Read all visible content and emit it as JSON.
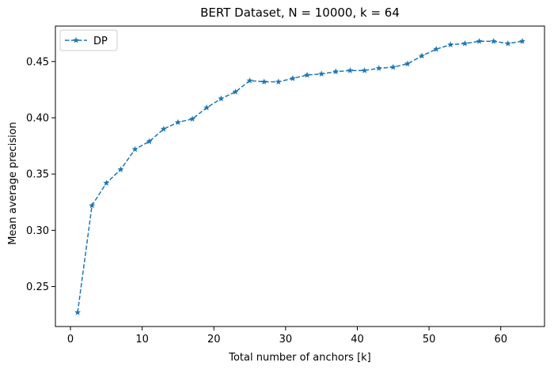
{
  "chart_data": {
    "type": "line",
    "title": "BERT Dataset, N = 10000, k = 64",
    "xlabel": "Total number of anchors [k]",
    "ylabel": "Mean average precision",
    "xlim": [
      -2.1,
      66.1
    ],
    "ylim": [
      0.2145,
      0.4815
    ],
    "xticks": [
      0,
      10,
      20,
      30,
      40,
      50,
      60
    ],
    "yticks": [
      0.25,
      0.3,
      0.35,
      0.4,
      0.45
    ],
    "ytick_labels": [
      "0.25",
      "0.30",
      "0.35",
      "0.40",
      "0.45"
    ],
    "grid": false,
    "legend_position": "top-left",
    "series": [
      {
        "name": "DP",
        "color": "#1f77b4",
        "linestyle": "dashed",
        "marker": "star",
        "x": [
          1,
          3,
          5,
          7,
          9,
          11,
          13,
          15,
          17,
          19,
          21,
          23,
          25,
          27,
          29,
          31,
          33,
          35,
          37,
          39,
          41,
          43,
          45,
          47,
          49,
          51,
          53,
          55,
          57,
          59,
          61,
          63
        ],
        "y": [
          0.227,
          0.322,
          0.342,
          0.354,
          0.372,
          0.379,
          0.39,
          0.396,
          0.399,
          0.409,
          0.417,
          0.423,
          0.433,
          0.432,
          0.432,
          0.435,
          0.438,
          0.439,
          0.441,
          0.442,
          0.442,
          0.444,
          0.445,
          0.448,
          0.455,
          0.461,
          0.465,
          0.466,
          0.468,
          0.468,
          0.466,
          0.468
        ]
      }
    ]
  }
}
